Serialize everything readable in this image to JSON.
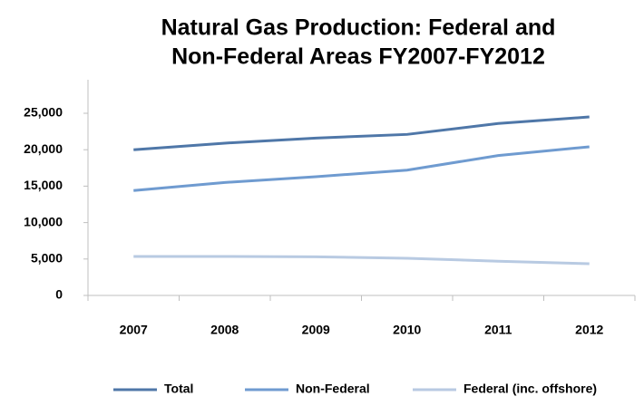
{
  "chart_data": {
    "type": "line",
    "title": [
      "Natural Gas Production: Federal and",
      "Non-Federal Areas FY2007-FY2012"
    ],
    "categories": [
      "2007",
      "2008",
      "2009",
      "2010",
      "2011",
      "2012"
    ],
    "series": [
      {
        "name": "Total",
        "color": "#4f77a8",
        "values": [
          20000,
          20900,
          21600,
          22100,
          23600,
          24500
        ]
      },
      {
        "name": "Non-Federal",
        "color": "#6f9bd0",
        "values": [
          14400,
          15500,
          16300,
          17200,
          19200,
          20400
        ]
      },
      {
        "name": "Federal (inc. offshore)",
        "color": "#b8cae2",
        "values": [
          5350,
          5350,
          5300,
          5100,
          4700,
          4350
        ]
      }
    ],
    "ylim": [
      0,
      25000
    ],
    "yticks": [
      0,
      {
        "value": 5000,
        "label": "5,000"
      },
      {
        "value": 10000,
        "label": "10,000"
      },
      {
        "value": 15000,
        "label": "15,000"
      },
      {
        "value": 20000,
        "label": "20,000"
      },
      {
        "value": 25000,
        "label": "25,000"
      }
    ],
    "legend": "bottom"
  }
}
